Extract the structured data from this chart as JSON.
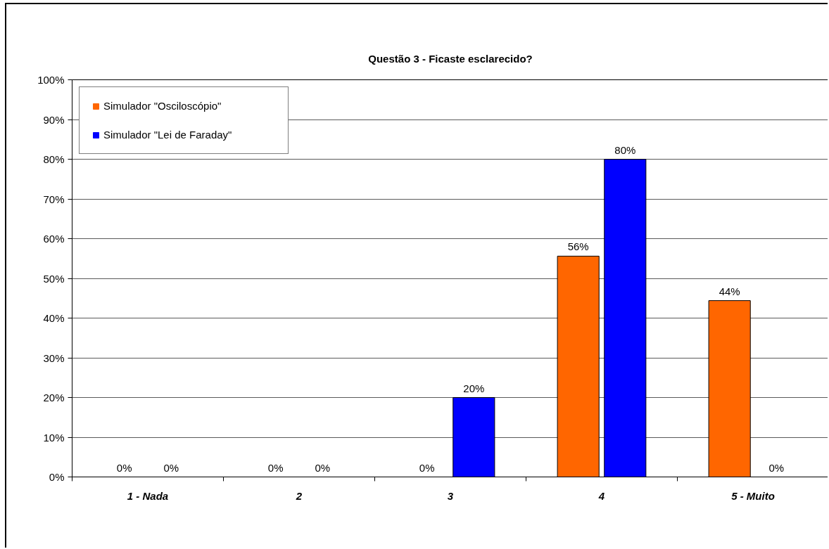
{
  "chart_data": {
    "type": "bar",
    "title": "Questão 3 - Ficaste esclarecido?",
    "categories": [
      "1 - Nada",
      "2",
      "3",
      "4",
      "5 - Muito"
    ],
    "series": [
      {
        "name": "Simulador \"Osciloscópio\"",
        "color": "#ff6600",
        "values": [
          0,
          0,
          0,
          55.6,
          44.4
        ],
        "value_labels": [
          "0%",
          "0%",
          "0%",
          "56%",
          "44%"
        ]
      },
      {
        "name": "Simulador \"Lei de Faraday\"",
        "color": "#0000ff",
        "values": [
          0,
          0,
          20,
          80,
          0
        ],
        "value_labels": [
          "0%",
          "0%",
          "20%",
          "80%",
          "0%"
        ]
      }
    ],
    "ylim": [
      0,
      100
    ],
    "yticks": [
      {
        "value": 0,
        "label": "0%"
      },
      {
        "value": 10,
        "label": "10%"
      },
      {
        "value": 20,
        "label": "20%"
      },
      {
        "value": 30,
        "label": "30%"
      },
      {
        "value": 40,
        "label": "40%"
      },
      {
        "value": 50,
        "label": "50%"
      },
      {
        "value": 60,
        "label": "60%"
      },
      {
        "value": 70,
        "label": "70%"
      },
      {
        "value": 80,
        "label": "80%"
      },
      {
        "value": 90,
        "label": "90%"
      },
      {
        "value": 100,
        "label": "100%"
      }
    ],
    "grid": "y",
    "legend": "top left"
  }
}
